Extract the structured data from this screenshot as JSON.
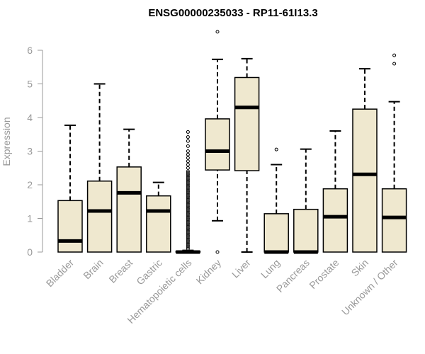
{
  "chart_data": {
    "type": "boxplot",
    "title": "ENSG00000235033 - RP11-61I13.3",
    "xlabel": "",
    "ylabel": "Expression",
    "ylim": [
      0,
      6.3
    ],
    "yticks": [
      0,
      1,
      2,
      3,
      4,
      5,
      6
    ],
    "colors": {
      "box_fill": "#efe8cf",
      "stroke": "#000000",
      "axis": "#999999"
    },
    "categories": [
      "Bladder",
      "Brain",
      "Breast",
      "Gastric",
      "Hematopoietic cells",
      "Kidney",
      "Liver",
      "Lung",
      "Pancreas",
      "Prostate",
      "Skin",
      "Unknown / Other"
    ],
    "boxes": [
      {
        "min": 0,
        "q1": 0,
        "median": 0.33,
        "q3": 1.53,
        "max": 3.77,
        "outliers": []
      },
      {
        "min": 0,
        "q1": 0,
        "median": 1.22,
        "q3": 2.11,
        "max": 5.0,
        "outliers": []
      },
      {
        "min": 0,
        "q1": 0,
        "median": 1.76,
        "q3": 2.53,
        "max": 3.65,
        "outliers": []
      },
      {
        "min": 0,
        "q1": 0,
        "median": 1.22,
        "q3": 1.67,
        "max": 2.07,
        "outliers": []
      },
      {
        "min": 0,
        "q1": 0,
        "median": 0,
        "q3": 0.02,
        "max": 0.05,
        "outliers": [
          0.1,
          0.15,
          0.2,
          0.25,
          0.3,
          0.35,
          0.4,
          0.45,
          0.5,
          0.55,
          0.6,
          0.65,
          0.7,
          0.75,
          0.8,
          0.85,
          0.9,
          0.95,
          1.0,
          1.05,
          1.1,
          1.15,
          1.2,
          1.25,
          1.3,
          1.35,
          1.4,
          1.45,
          1.5,
          1.55,
          1.6,
          1.65,
          1.7,
          1.75,
          1.8,
          1.85,
          1.9,
          1.95,
          2.0,
          2.05,
          2.1,
          2.15,
          2.2,
          2.25,
          2.3,
          2.35,
          2.4,
          2.5,
          2.6,
          2.7,
          2.8,
          2.9,
          3.0,
          3.15,
          3.3,
          3.42,
          3.57
        ]
      },
      {
        "min": 0.93,
        "q1": 2.44,
        "median": 3.0,
        "q3": 3.96,
        "max": 5.73,
        "outliers": [
          0,
          6.55
        ]
      },
      {
        "min": 0,
        "q1": 2.42,
        "median": 4.3,
        "q3": 5.19,
        "max": 5.75,
        "outliers": []
      },
      {
        "min": 0,
        "q1": 0,
        "median": 0,
        "q3": 1.14,
        "max": 2.6,
        "outliers": [
          3.05
        ]
      },
      {
        "min": 0,
        "q1": 0,
        "median": 0,
        "q3": 1.27,
        "max": 3.06,
        "outliers": []
      },
      {
        "min": 0,
        "q1": 0,
        "median": 1.05,
        "q3": 1.88,
        "max": 3.6,
        "outliers": []
      },
      {
        "min": 0,
        "q1": 0,
        "median": 2.31,
        "q3": 4.25,
        "max": 5.45,
        "outliers": []
      },
      {
        "min": 0,
        "q1": 0,
        "median": 1.03,
        "q3": 1.88,
        "max": 4.47,
        "outliers": [
          5.6,
          5.85
        ]
      }
    ]
  }
}
